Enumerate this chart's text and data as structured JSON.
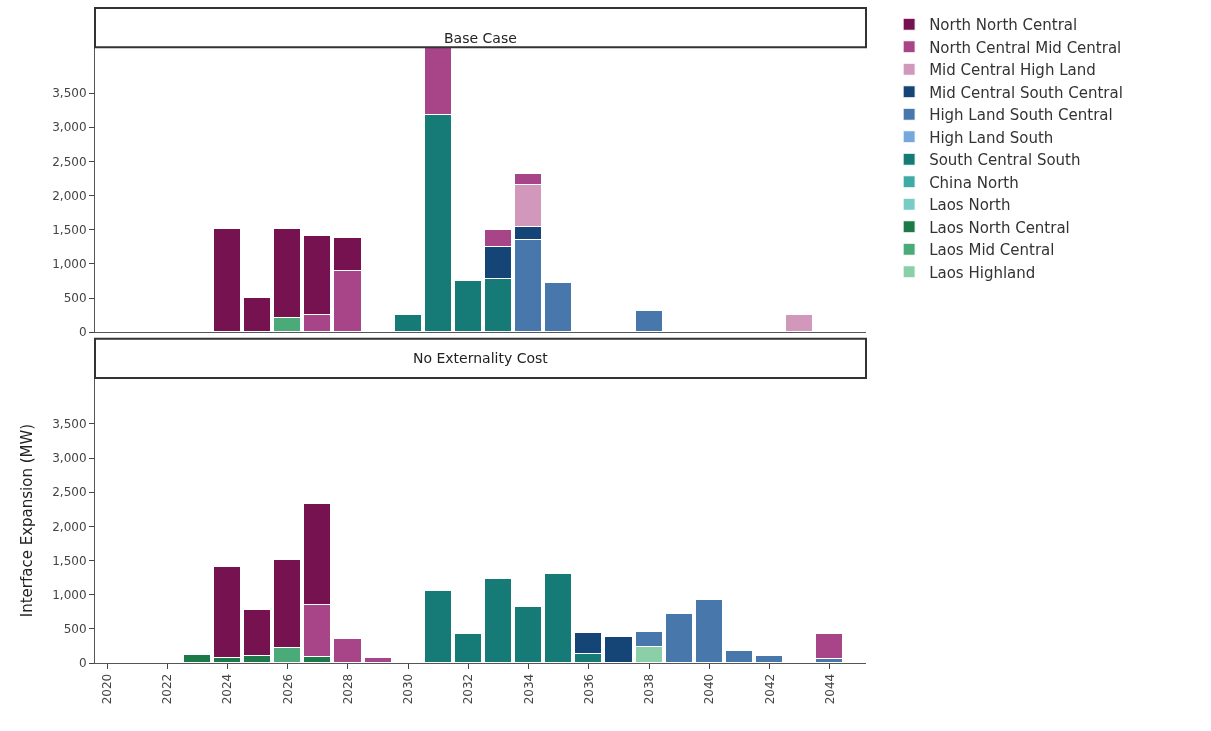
{
  "chart_data": [
    {
      "type": "bar",
      "title": "Base Case",
      "stacked": true,
      "legend": "right",
      "tick_labels": "y",
      "x": [
        2024,
        2025,
        2026,
        2027,
        2028,
        2030,
        2031,
        2032,
        2033,
        2034,
        2035,
        2038,
        2043
      ],
      "xlim": [
        2019.6,
        2045.2
      ],
      "xticks": [
        2020,
        2022,
        2024,
        2026,
        2028,
        2030,
        2032,
        2034,
        2036,
        2038,
        2040,
        2042,
        2044
      ],
      "ylim": [
        0,
        4170
      ],
      "yticks": [
        0,
        500,
        {
          "value": 1000,
          "label": "1,000"
        },
        {
          "value": 1500,
          "label": "1,500"
        },
        {
          "value": 2000,
          "label": "2,000"
        },
        {
          "value": 2500,
          "label": "2,500"
        },
        {
          "value": 3000,
          "label": "3,000"
        },
        {
          "value": 3500,
          "label": "3,500"
        }
      ],
      "series": [
        {
          "name": "Laos Mid Central",
          "color": "#4aaa78",
          "values": [
            null,
            null,
            200,
            null,
            null,
            null,
            null,
            null,
            null,
            null,
            null,
            null,
            null
          ]
        },
        {
          "name": "South Central South",
          "color": "#167a77",
          "values": [
            null,
            null,
            null,
            null,
            null,
            250,
            3180,
            750,
            780,
            null,
            null,
            null,
            null
          ]
        },
        {
          "name": "High Land South Central",
          "color": "#4878ab",
          "values": [
            null,
            null,
            null,
            null,
            null,
            null,
            null,
            null,
            null,
            1340,
            710,
            310,
            null
          ]
        },
        {
          "name": "Mid Central South Central",
          "color": "#154577",
          "values": [
            null,
            null,
            null,
            null,
            null,
            null,
            null,
            null,
            460,
            200,
            null,
            null,
            null
          ]
        },
        {
          "name": "Mid Central High Land",
          "color": "#d198bb",
          "values": [
            null,
            null,
            null,
            null,
            null,
            null,
            null,
            null,
            null,
            610,
            null,
            null,
            250
          ]
        },
        {
          "name": "North Central Mid Central",
          "color": "#a84588",
          "values": [
            null,
            null,
            null,
            250,
            890,
            null,
            990,
            null,
            250,
            160,
            null,
            null,
            null
          ]
        },
        {
          "name": "North North Central",
          "color": "#76124f",
          "values": [
            1500,
            500,
            1300,
            1160,
            490,
            null,
            null,
            null,
            null,
            null,
            null,
            null,
            null
          ]
        },
        {
          "name": "High Land South",
          "color": "#76a8dc",
          "values": [
            null,
            null,
            null,
            null,
            null,
            null,
            null,
            null,
            null,
            null,
            null,
            null,
            null
          ]
        },
        {
          "name": "China North",
          "color": "#40aaa4",
          "values": [
            null,
            null,
            null,
            null,
            null,
            null,
            null,
            null,
            null,
            null,
            null,
            null,
            null
          ]
        },
        {
          "name": "Laos North",
          "color": "#79cbc6",
          "values": [
            null,
            null,
            null,
            null,
            null,
            null,
            null,
            null,
            null,
            null,
            null,
            null,
            null
          ]
        }
      ]
    },
    {
      "type": "bar",
      "title": "No Externality Cost",
      "ylabel": "Interface Expansion (MW)",
      "stacked": true,
      "legend": "right",
      "x": [
        2023,
        2024,
        2025,
        2026,
        2027,
        2028,
        2029,
        2031,
        2032,
        2033,
        2034,
        2035,
        2036,
        2037,
        2038,
        2039,
        2040,
        2041,
        2042,
        2044
      ],
      "xlim": [
        2019.6,
        2045.2
      ],
      "xticks": [
        2020,
        2022,
        2024,
        2026,
        2028,
        2030,
        2032,
        2034,
        2036,
        2038,
        2040,
        2042,
        2044
      ],
      "ylim": [
        0,
        4170
      ],
      "yticks": [
        0,
        500,
        {
          "value": 1000,
          "label": "1,000"
        },
        {
          "value": 1500,
          "label": "1,500"
        },
        {
          "value": 2000,
          "label": "2,000"
        },
        {
          "value": 2500,
          "label": "2,500"
        },
        {
          "value": 3000,
          "label": "3,000"
        },
        {
          "value": 3500,
          "label": "3,500"
        }
      ],
      "series": [
        {
          "name": "Laos North Central",
          "color": "#1b7a48",
          "values": [
            120,
            70,
            100,
            null,
            80,
            null,
            null,
            null,
            null,
            null,
            null,
            null,
            null,
            null,
            null,
            null,
            null,
            null,
            null,
            null
          ]
        },
        {
          "name": "Laos Mid Central",
          "color": "#4aaa78",
          "values": [
            null,
            null,
            null,
            220,
            null,
            null,
            null,
            null,
            null,
            null,
            null,
            null,
            null,
            null,
            null,
            null,
            null,
            null,
            null,
            null
          ]
        },
        {
          "name": "Laos Highland",
          "color": "#8acfa8",
          "values": [
            null,
            null,
            null,
            null,
            null,
            null,
            null,
            null,
            null,
            null,
            null,
            null,
            null,
            null,
            230,
            null,
            null,
            null,
            null,
            null
          ]
        },
        {
          "name": "South Central South",
          "color": "#167a77",
          "values": [
            null,
            null,
            null,
            null,
            null,
            null,
            null,
            1050,
            420,
            1230,
            820,
            1300,
            130,
            null,
            null,
            null,
            null,
            null,
            null,
            null
          ]
        },
        {
          "name": "High Land South Central",
          "color": "#4878ab",
          "values": [
            null,
            null,
            null,
            null,
            null,
            null,
            null,
            null,
            null,
            null,
            null,
            null,
            null,
            null,
            220,
            720,
            920,
            180,
            100,
            60
          ]
        },
        {
          "name": "Mid Central South Central",
          "color": "#154577",
          "values": [
            null,
            null,
            null,
            null,
            null,
            null,
            null,
            null,
            null,
            null,
            null,
            null,
            310,
            380,
            null,
            null,
            null,
            null,
            null,
            null
          ]
        },
        {
          "name": "North Central Mid Central",
          "color": "#a84588",
          "values": [
            null,
            null,
            null,
            null,
            770,
            350,
            70,
            null,
            null,
            null,
            null,
            null,
            null,
            null,
            null,
            null,
            null,
            null,
            null,
            370
          ]
        },
        {
          "name": "North North Central",
          "color": "#76124f",
          "values": [
            null,
            1330,
            680,
            1280,
            1470,
            null,
            null,
            null,
            null,
            null,
            null,
            null,
            null,
            null,
            null,
            null,
            null,
            null,
            null,
            null
          ]
        }
      ]
    }
  ]
}
